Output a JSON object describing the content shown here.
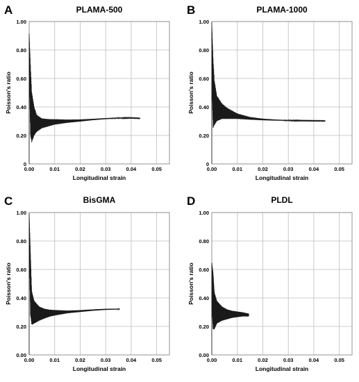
{
  "chart_data": [
    {
      "panel": "A",
      "type": "line",
      "title": "PLAMA-500",
      "xlabel": "Longitudinal strain",
      "ylabel": "Poisson's ratio",
      "xlim": [
        0,
        0.055
      ],
      "ylim": [
        0,
        1.0
      ],
      "x_ticks": [
        "0.00",
        "0.01",
        "0.02",
        "0.03",
        "0.04",
        "0.05"
      ],
      "y_ticks": [
        "0",
        "0.20",
        "0.40",
        "0.60",
        "0.80",
        "1.00"
      ],
      "grid": true,
      "series": [
        {
          "x": [
            0.0,
            0.0005,
            0.001,
            0.002,
            0.003,
            0.005,
            0.008,
            0.01,
            0.015,
            0.02,
            0.025,
            0.03,
            0.035,
            0.04,
            0.0435
          ],
          "y": [
            0.8,
            0.45,
            0.33,
            0.3,
            0.285,
            0.285,
            0.29,
            0.295,
            0.3,
            0.305,
            0.312,
            0.318,
            0.322,
            0.323,
            0.32
          ],
          "noise": [
            0.12,
            0.25,
            0.18,
            0.1,
            0.06,
            0.035,
            0.025,
            0.02,
            0.012,
            0.008,
            0.005,
            0.004,
            0.003,
            0.002,
            0.002
          ]
        }
      ]
    },
    {
      "panel": "B",
      "type": "line",
      "title": "PLAMA-1000",
      "xlabel": "Longitudinal strain",
      "ylabel": "Poisson's ratio",
      "xlim": [
        0,
        0.055
      ],
      "ylim": [
        0,
        1.0
      ],
      "x_ticks": [
        "0.00",
        "0.01",
        "0.02",
        "0.03",
        "0.04",
        "0.05"
      ],
      "y_ticks": [
        "0",
        "0.20",
        "0.40",
        "0.60",
        "0.80",
        "1.00"
      ],
      "grid": true,
      "series": [
        {
          "x": [
            0.0,
            0.0005,
            0.001,
            0.002,
            0.004,
            0.006,
            0.008,
            0.01,
            0.015,
            0.02,
            0.025,
            0.03,
            0.035,
            0.04,
            0.0445
          ],
          "y": [
            0.8,
            0.5,
            0.43,
            0.39,
            0.37,
            0.355,
            0.345,
            0.335,
            0.32,
            0.312,
            0.308,
            0.305,
            0.304,
            0.303,
            0.302
          ],
          "noise": [
            0.2,
            0.25,
            0.16,
            0.09,
            0.055,
            0.04,
            0.03,
            0.02,
            0.01,
            0.006,
            0.004,
            0.003,
            0.002,
            0.002,
            0.002
          ]
        }
      ]
    },
    {
      "panel": "C",
      "type": "line",
      "title": "BisGMA",
      "xlabel": "Longitudinal strain",
      "ylabel": "Poisson's ratio",
      "xlim": [
        0,
        0.055
      ],
      "ylim": [
        0,
        1.0
      ],
      "x_ticks": [
        "0.00",
        "0.01",
        "0.02",
        "0.03",
        "0.04",
        "0.05"
      ],
      "y_ticks": [
        "0.00",
        "0.20",
        "0.40",
        "0.60",
        "0.80",
        "1.00"
      ],
      "grid": true,
      "series": [
        {
          "x": [
            0.0,
            0.0005,
            0.001,
            0.002,
            0.004,
            0.006,
            0.008,
            0.01,
            0.015,
            0.02,
            0.025,
            0.03,
            0.0355
          ],
          "y": [
            0.9,
            0.5,
            0.33,
            0.3,
            0.29,
            0.29,
            0.293,
            0.296,
            0.302,
            0.308,
            0.315,
            0.32,
            0.322
          ],
          "noise": [
            0.1,
            0.22,
            0.12,
            0.08,
            0.05,
            0.035,
            0.025,
            0.02,
            0.01,
            0.007,
            0.005,
            0.004,
            0.003
          ]
        }
      ]
    },
    {
      "panel": "D",
      "type": "line",
      "title": "PLDL",
      "xlabel": "Longitudinal strain",
      "ylabel": "Poisson's ratio",
      "xlim": [
        0,
        0.055
      ],
      "ylim": [
        0,
        1.0
      ],
      "x_ticks": [
        "0.00",
        "0.01",
        "0.02",
        "0.03",
        "0.04",
        "0.05"
      ],
      "y_ticks": [
        "0.00",
        "0.20",
        "0.40",
        "0.60",
        "0.80",
        "1.00"
      ],
      "grid": true,
      "series": [
        {
          "x": [
            0.0,
            0.0005,
            0.001,
            0.002,
            0.004,
            0.006,
            0.008,
            0.01,
            0.012,
            0.0145
          ],
          "y": [
            0.5,
            0.38,
            0.31,
            0.3,
            0.29,
            0.285,
            0.285,
            0.285,
            0.285,
            0.28
          ],
          "noise": [
            0.15,
            0.2,
            0.13,
            0.08,
            0.05,
            0.035,
            0.025,
            0.02,
            0.015,
            0.01
          ]
        }
      ]
    }
  ]
}
